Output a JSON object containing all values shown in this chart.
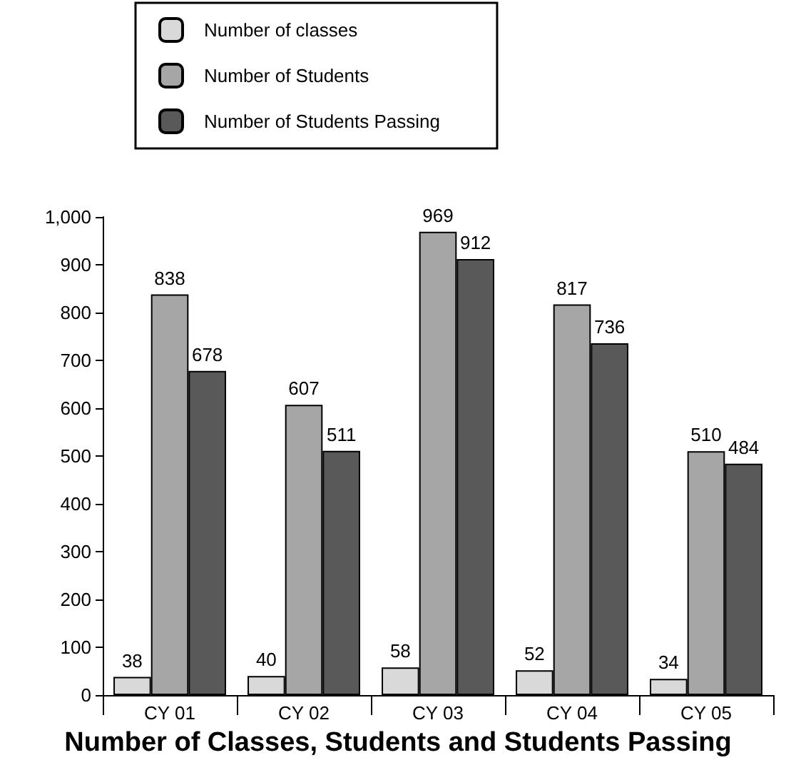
{
  "chart_data": {
    "type": "bar",
    "title": "Number of Classes, Students and Students Passing",
    "categories": [
      "CY 01",
      "CY 02",
      "CY 03",
      "CY 04",
      "CY 05"
    ],
    "series": [
      {
        "name": "Number of classes",
        "color": "#d9d9d9",
        "values": [
          38,
          40,
          58,
          52,
          34
        ]
      },
      {
        "name": "Number of Students",
        "color": "#a6a6a6",
        "values": [
          838,
          607,
          969,
          817,
          510
        ]
      },
      {
        "name": "Number of Students Passing",
        "color": "#595959",
        "values": [
          678,
          511,
          912,
          736,
          484
        ]
      }
    ],
    "ylim": [
      0,
      1000
    ],
    "yticks": [
      0,
      100,
      200,
      300,
      400,
      500,
      600,
      700,
      800,
      900,
      {
        "value": 1000,
        "label": "1,000"
      }
    ],
    "grid": false,
    "legend": "top",
    "data_labels": true
  }
}
